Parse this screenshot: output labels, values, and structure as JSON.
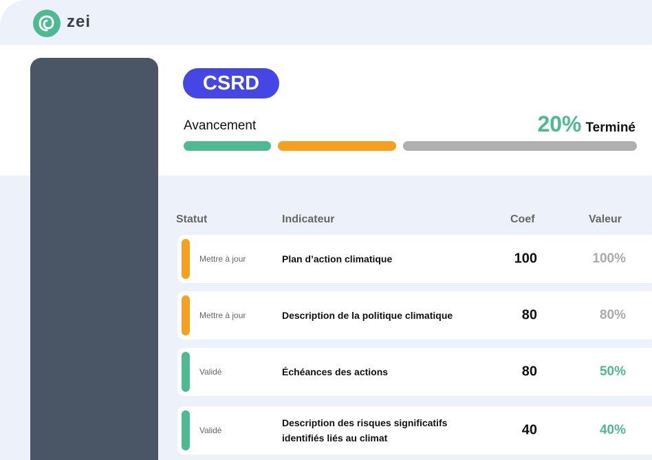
{
  "brand": {
    "name": "zei",
    "accent": "#4dba91"
  },
  "header": {
    "badge": "CSRD",
    "progress_label": "Avancement",
    "progress_percent": "20%",
    "progress_suffix": "Terminé",
    "segments": [
      {
        "color": "#4dba91"
      },
      {
        "color": "#f5a01e"
      },
      {
        "color": "#b0b0b0"
      }
    ]
  },
  "table": {
    "columns": [
      "Statut",
      "Indicateur",
      "Coef",
      "Valeur"
    ],
    "rows": [
      {
        "status": "Mettre à jour",
        "status_color": "#f5a01e",
        "indicator": "Plan d’action climatique",
        "coef": "100",
        "value": "100%",
        "value_color": "#aaaaaa"
      },
      {
        "status": "Mettre à jour",
        "status_color": "#f5a01e",
        "indicator": "Description de la politique climatique",
        "coef": "80",
        "value": "80%",
        "value_color": "#aaaaaa"
      },
      {
        "status": "Validé",
        "status_color": "#4dba91",
        "indicator": "Échéances des actions",
        "coef": "80",
        "value": "50%",
        "value_color": "#4dba91"
      },
      {
        "status": "Validé",
        "status_color": "#4dba91",
        "indicator": "Description des risques significatifs identifiés liés au climat",
        "coef": "40",
        "value": "40%",
        "value_color": "#4dba91"
      }
    ]
  }
}
